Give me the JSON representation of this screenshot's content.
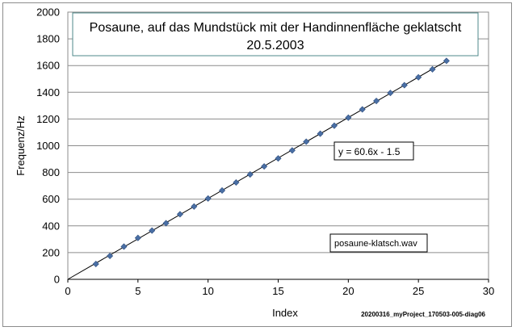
{
  "chart_data": {
    "type": "scatter",
    "title_line1": "Posaune, auf das Mundstück mit der Handinnenfläche geklatscht",
    "title_line2": "20.5.2003",
    "xlabel": "Index",
    "ylabel": "Frequenz/Hz",
    "xlim": [
      0,
      30
    ],
    "ylim": [
      0,
      2000
    ],
    "x_ticks": [
      0,
      5,
      10,
      15,
      20,
      25,
      30
    ],
    "y_ticks": [
      0,
      200,
      400,
      600,
      800,
      1000,
      1200,
      1400,
      1600,
      1800,
      2000
    ],
    "grid": "horizontal",
    "marker_color": "#4a6fa5",
    "line_color": "#000000",
    "points": {
      "x": [
        2,
        3,
        4,
        5,
        6,
        7,
        8,
        9,
        10,
        11,
        12,
        13,
        14,
        15,
        16,
        17,
        18,
        19,
        20,
        21,
        22,
        23,
        24,
        25,
        26,
        27
      ],
      "y": [
        115,
        175,
        245,
        310,
        365,
        420,
        487,
        545,
        605,
        665,
        725,
        785,
        845,
        905,
        965,
        1030,
        1090,
        1150,
        1210,
        1272,
        1335,
        1395,
        1453,
        1512,
        1572,
        1635
      ]
    },
    "trendline": {
      "label": "y = 60.6x - 1.5",
      "slope": 60.6,
      "intercept": -1.5,
      "x_range": [
        0,
        27
      ]
    },
    "annotation_file": "posaune-klatsch.wav",
    "footer_note": "20200316_myProject_170503-005-diag06"
  }
}
